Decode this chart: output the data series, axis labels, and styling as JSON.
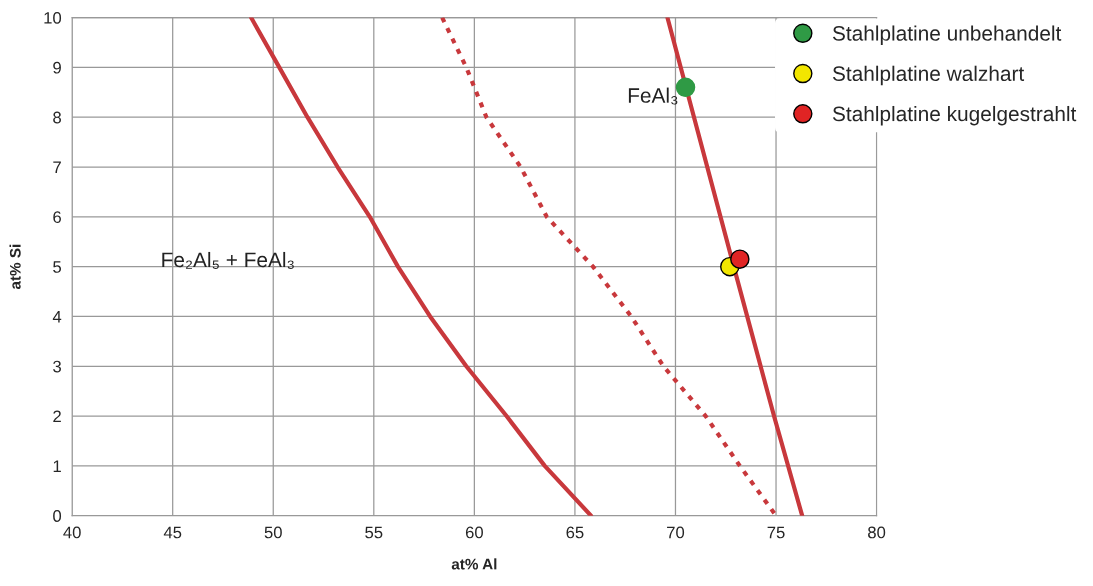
{
  "chart_data": {
    "type": "line",
    "xlabel": "at% Al",
    "ylabel": "at% Si",
    "xlim": [
      40,
      80
    ],
    "ylim": [
      0,
      10
    ],
    "xticks": [
      40,
      45,
      50,
      55,
      60,
      65,
      70,
      75,
      80
    ],
    "yticks": [
      0,
      1,
      2,
      3,
      4,
      5,
      6,
      7,
      8,
      9,
      10
    ],
    "grid": true,
    "legend": "top right",
    "annotations": [
      "FeAl₃",
      "Fe₂Al₅ + FeAl₃"
    ],
    "series": [
      {
        "line_style": "solid",
        "color": "#c8383c",
        "x": [
          48.9,
          50.3,
          51.7,
          53.2,
          54.8,
          56.2,
          57.8,
          59.6,
          61.6,
          63.5,
          65.8
        ],
        "values": [
          10,
          9,
          8,
          7,
          6,
          5,
          4,
          3,
          2,
          1,
          0
        ]
      },
      {
        "line_style": "dotted",
        "color": "#c8383c",
        "x": [
          58.4,
          59.6,
          60.6,
          62.3,
          63.6,
          65.9,
          67.8,
          69.4,
          71.5,
          73.2,
          75.0
        ],
        "values": [
          10,
          9,
          8,
          7,
          6,
          5,
          4,
          3,
          2,
          1,
          0
        ]
      },
      {
        "line_style": "solid",
        "color": "#c8383c",
        "x": [
          69.6,
          72.9,
          74.9,
          76.3
        ],
        "values": [
          10,
          5,
          2,
          0
        ]
      },
      {
        "type": "scatter",
        "marker": "circle",
        "name": "Stahlplatine unbehandelt",
        "color": "#2f9a45",
        "x": [
          70.5
        ],
        "values": [
          8.6
        ]
      },
      {
        "type": "scatter",
        "marker": "circle",
        "name": "Stahlplatine walzhart",
        "color": "#f2e600",
        "x": [
          72.7
        ],
        "values": [
          5.0
        ]
      },
      {
        "type": "scatter",
        "marker": "circle",
        "name": "Stahlplatine kugelgestrahlt",
        "color": "#e02424",
        "x": [
          73.2
        ],
        "values": [
          5.15
        ]
      }
    ]
  }
}
